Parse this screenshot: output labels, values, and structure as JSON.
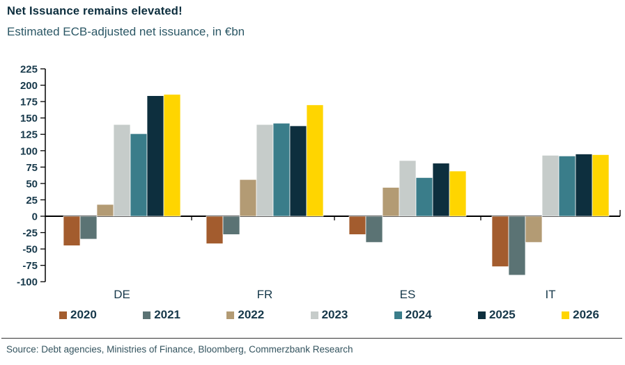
{
  "header": {
    "title": "Net Issuance remains elevated!",
    "subtitle": "Estimated ECB-adjusted net issuance, in €bn"
  },
  "chart_data": {
    "type": "bar",
    "title": "Net Issuance remains elevated!",
    "subtitle": "Estimated ECB-adjusted net issuance, in €bn",
    "categories": [
      "DE",
      "FR",
      "ES",
      "IT"
    ],
    "series": [
      {
        "name": "2020",
        "color": "#A35C2E",
        "values": [
          -45,
          -42,
          -28,
          -77
        ]
      },
      {
        "name": "2021",
        "color": "#5B7374",
        "values": [
          -35,
          -28,
          -40,
          -90
        ]
      },
      {
        "name": "2022",
        "color": "#B39B74",
        "values": [
          18,
          56,
          44,
          -40
        ]
      },
      {
        "name": "2023",
        "color": "#C6CCCA",
        "values": [
          140,
          140,
          85,
          93
        ]
      },
      {
        "name": "2024",
        "color": "#3A7D8A",
        "values": [
          126,
          142,
          59,
          92
        ]
      },
      {
        "name": "2025",
        "color": "#0D2F3E",
        "values": [
          184,
          138,
          81,
          95
        ]
      },
      {
        "name": "2026",
        "color": "#FFD500",
        "values": [
          186,
          170,
          69,
          94
        ]
      }
    ],
    "xlabel": "",
    "ylabel": "",
    "ylim": [
      -100,
      225
    ],
    "ytick_step": 25,
    "yticks": [
      225,
      200,
      175,
      150,
      125,
      100,
      75,
      50,
      25,
      0,
      -25,
      -50,
      -75,
      -100
    ],
    "grid": false,
    "legend_position": "bottom"
  },
  "footer": {
    "source": "Source: Debt agencies, Ministries of Finance, Bloomberg, Commerzbank Research"
  },
  "colors": {
    "title": "#0B2D3D",
    "subtitle": "#2B5765",
    "axis": "#000000",
    "tick_label": "#16384A",
    "source_text": "#33535E"
  }
}
